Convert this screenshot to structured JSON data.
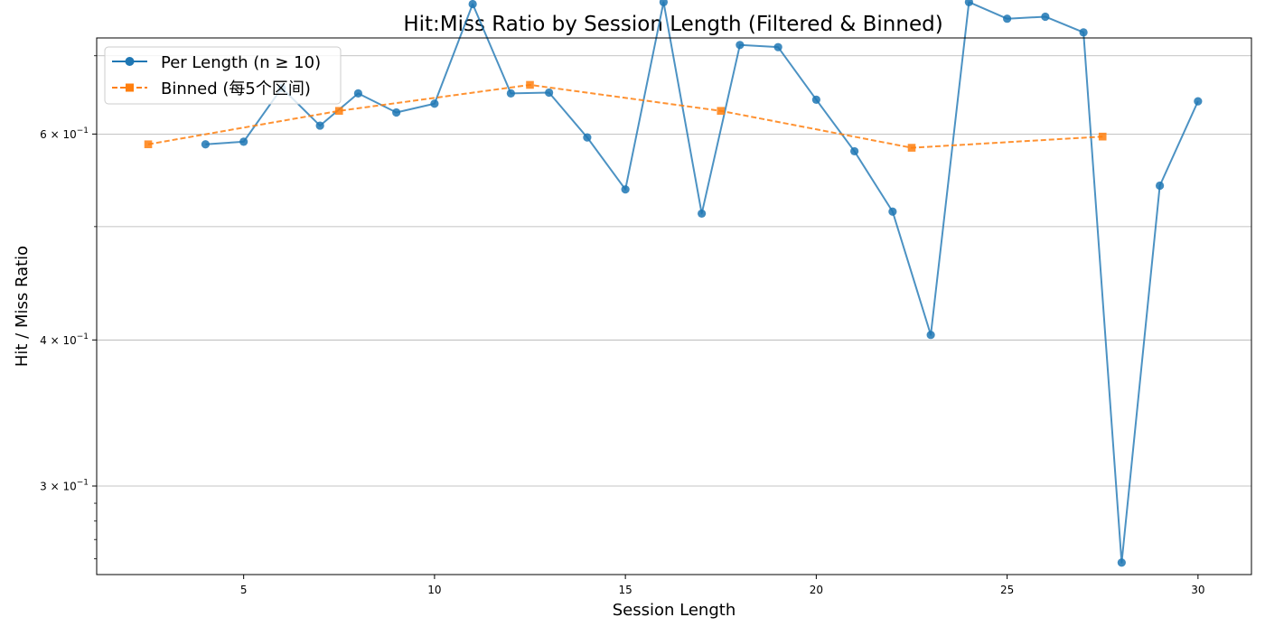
{
  "chart_data": {
    "type": "line",
    "title": "Hit:Miss Ratio by Session Length (Filtered & Binned)",
    "xlabel": "Session Length",
    "ylabel": "Hit / Miss Ratio",
    "xlim": [
      1.15,
      31.4
    ],
    "ylim": [
      0.252,
      0.725
    ],
    "yscale": "log",
    "grid": "y",
    "legend_position": "top-left",
    "x_ticks": [
      {
        "value": 5,
        "label": "5"
      },
      {
        "value": 10,
        "label": "10"
      },
      {
        "value": 15,
        "label": "15"
      },
      {
        "value": 20,
        "label": "20"
      },
      {
        "value": 25,
        "label": "25"
      },
      {
        "value": 30,
        "label": "30"
      }
    ],
    "y_major_ticks": [
      {
        "value": 0.3,
        "mantissa": "3",
        "exponent": "−1"
      },
      {
        "value": 0.4,
        "mantissa": "4",
        "exponent": "−1"
      },
      {
        "value": 0.6,
        "mantissa": "6",
        "exponent": "−1"
      }
    ],
    "y_minor_grid": [
      0.5,
      0.7
    ],
    "series": [
      {
        "name": "Per Length (n ≥ 10)",
        "color": "#1f77b4",
        "style": "solid",
        "marker": "circle",
        "x": [
          4,
          5,
          6,
          7,
          8,
          9,
          10,
          11,
          12,
          13,
          14,
          15,
          16,
          17,
          18,
          19,
          20,
          21,
          22,
          23,
          24,
          25,
          26,
          27,
          28,
          29,
          30
        ],
        "y": [
          0.588,
          0.591,
          0.657,
          0.61,
          0.65,
          0.626,
          0.637,
          0.775,
          0.65,
          0.651,
          0.596,
          0.538,
          0.778,
          0.513,
          0.715,
          0.712,
          0.642,
          0.58,
          0.515,
          0.404,
          0.778,
          0.753,
          0.756,
          0.733,
          0.258,
          0.542,
          0.64
        ]
      },
      {
        "name": "Binned (每5个区间)",
        "color": "#ff7f0e",
        "style": "dashed",
        "marker": "square",
        "x": [
          2.5,
          7.5,
          12.5,
          17.5,
          22.5,
          27.5
        ],
        "y": [
          0.588,
          0.628,
          0.661,
          0.628,
          0.584,
          0.597
        ]
      }
    ]
  }
}
